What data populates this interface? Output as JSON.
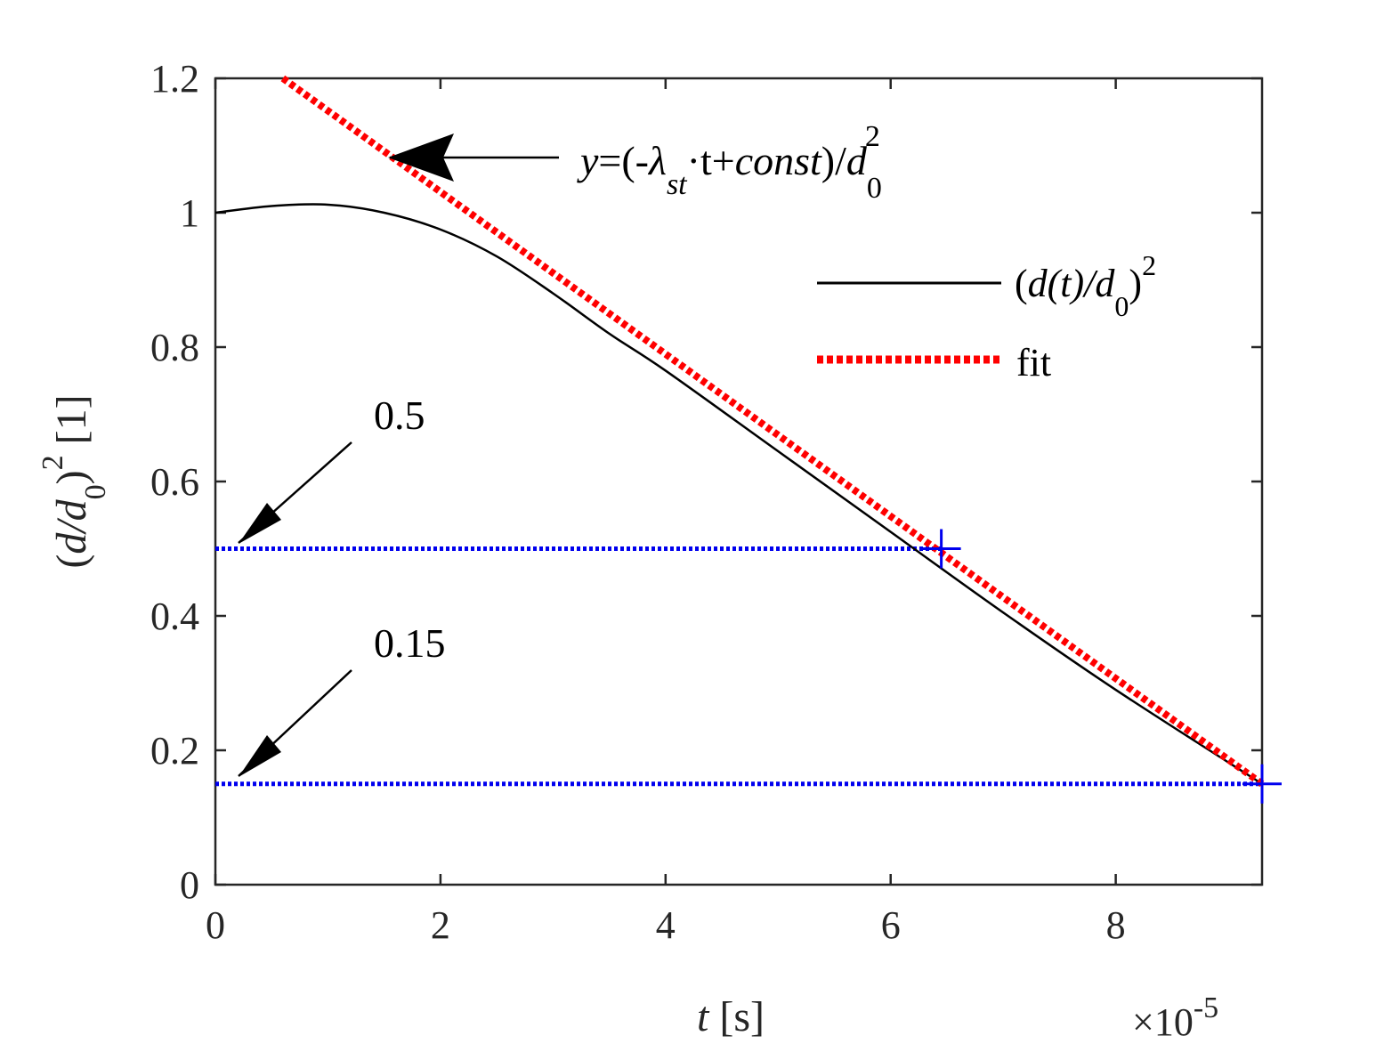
{
  "chart_data": {
    "type": "line",
    "title": "",
    "xlabel": "t [s]",
    "xlabel_parts": {
      "var": "t",
      "unit": " [s]"
    },
    "ylabel": "(d/d0)^2 [1]",
    "xlim": [
      0,
      9.3e-05
    ],
    "ylim": [
      0,
      1.2
    ],
    "x_exponent_label": "×10",
    "x_exponent_power": "-5",
    "x_scale": 1e-05,
    "x_ticks": [
      0,
      2,
      4,
      6,
      8
    ],
    "x_tick_labels": [
      "0",
      "2",
      "4",
      "6",
      "8"
    ],
    "y_ticks": [
      0,
      0.2,
      0.4,
      0.6,
      0.8,
      1.0,
      1.2
    ],
    "y_tick_labels": [
      "0",
      "0.2",
      "0.4",
      "0.6",
      "0.8",
      "1",
      "1.2"
    ],
    "grid": false,
    "legend_position": "top-right",
    "series": [
      {
        "name": "(d(t)/d0)^2",
        "style": "solid",
        "color": "#000000",
        "x": [
          0,
          5e-06,
          1e-05,
          1.5e-05,
          2e-05,
          2.5e-05,
          3e-05,
          3.5e-05,
          4e-05,
          5e-05,
          6e-05,
          7e-05,
          8e-05,
          9.3e-05
        ],
        "y": [
          1.0,
          1.01,
          1.012,
          1.0,
          0.975,
          0.935,
          0.88,
          0.82,
          0.765,
          0.645,
          0.525,
          0.405,
          0.29,
          0.15
        ]
      },
      {
        "name": "fit",
        "style": "dotted",
        "color": "#ff0000",
        "x": [
          6e-06,
          9.3e-05
        ],
        "y": [
          1.2,
          0.15
        ]
      },
      {
        "name": "",
        "style": "dotted",
        "color": "#0000ee",
        "x": [
          0,
          6.45e-05
        ],
        "y": [
          0.5,
          0.5
        ]
      },
      {
        "name": "",
        "style": "dotted",
        "color": "#0000ee",
        "x": [
          0,
          9.3e-05
        ],
        "y": [
          0.15,
          0.15
        ]
      }
    ],
    "markers": [
      {
        "x": 6.45e-05,
        "y": 0.5,
        "symbol": "+",
        "color": "#0000ee"
      },
      {
        "x": 9.3e-05,
        "y": 0.15,
        "symbol": "+",
        "color": "#0000ee"
      }
    ],
    "annotations": [
      {
        "text": "0.5",
        "x": 3e-07,
        "y": 0.5
      },
      {
        "text": "0.15",
        "x": 3e-07,
        "y": 0.15
      },
      {
        "text": "y=(-λst·t+const)/d0^2",
        "x": 1.5e-05,
        "y": 1.08
      }
    ],
    "equation_parts": {
      "y": "y",
      "eq": "=(-",
      "lambda": "λ",
      "sub": "st",
      "rest": "·t+",
      "const": "const",
      "close": ")/",
      "d": "d",
      "dsub": "0",
      "dsup": "2"
    },
    "legend_entries": [
      {
        "text_parts": {
          "open": "(",
          "d": "d",
          "t": "(t)/",
          "d2": "d",
          "sub": "0",
          "close": ")",
          "sup": "2"
        }
      },
      {
        "text": "fit"
      }
    ],
    "ylabel_parts": {
      "open": "(",
      "d": "d",
      "slash": "/",
      "d2": "d",
      "sub": "0",
      "close": ")",
      "sup": "2",
      "unit": " [1]"
    }
  }
}
